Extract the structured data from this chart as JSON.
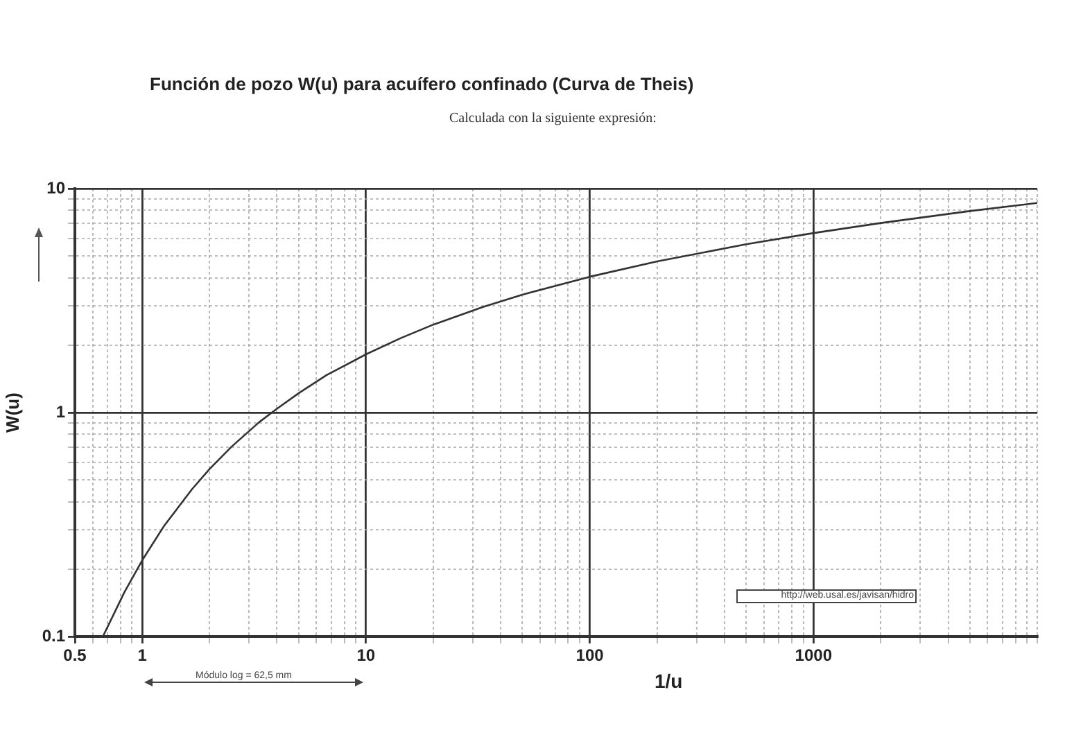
{
  "chart_data": {
    "type": "line",
    "title": "Función de pozo W(u) para acuífero confinado (Curva de Theis)",
    "subtitle": "Calculada con la siguiente expresión:",
    "xlabel": "1/u",
    "ylabel": "W(u)",
    "annotations": [
      "Módulo log = 62,5 mm",
      "http://web.usal.es/javisan/hidro"
    ],
    "log": "xy",
    "grid": true,
    "xlim": [
      0.5,
      10000
    ],
    "ylim": [
      0.1,
      10
    ],
    "xticks": [
      0.5,
      {
        "value": 0.6,
        "label": null
      },
      {
        "value": 0.7,
        "label": null
      },
      {
        "value": 0.8,
        "label": null
      },
      {
        "value": 0.9,
        "label": null
      },
      1,
      {
        "value": 2,
        "label": null
      },
      {
        "value": 3,
        "label": null
      },
      {
        "value": 4,
        "label": null
      },
      {
        "value": 5,
        "label": null
      },
      {
        "value": 6,
        "label": null
      },
      {
        "value": 7,
        "label": null
      },
      {
        "value": 8,
        "label": null
      },
      {
        "value": 9,
        "label": null
      },
      10,
      {
        "value": 20,
        "label": null
      },
      {
        "value": 30,
        "label": null
      },
      {
        "value": 40,
        "label": null
      },
      {
        "value": 50,
        "label": null
      },
      {
        "value": 60,
        "label": null
      },
      {
        "value": 70,
        "label": null
      },
      {
        "value": 80,
        "label": null
      },
      {
        "value": 90,
        "label": null
      },
      100,
      {
        "value": 200,
        "label": null
      },
      {
        "value": 300,
        "label": null
      },
      {
        "value": 400,
        "label": null
      },
      {
        "value": 500,
        "label": null
      },
      {
        "value": 600,
        "label": null
      },
      {
        "value": 700,
        "label": null
      },
      {
        "value": 800,
        "label": null
      },
      {
        "value": 900,
        "label": null
      },
      1000,
      {
        "value": 2000,
        "label": null
      },
      {
        "value": 3000,
        "label": null
      },
      {
        "value": 4000,
        "label": null
      },
      {
        "value": 5000,
        "label": null
      },
      {
        "value": 6000,
        "label": null
      },
      {
        "value": 7000,
        "label": null
      },
      {
        "value": 8000,
        "label": null
      },
      {
        "value": 9000,
        "label": null
      },
      {
        "value": 10000,
        "label": null
      }
    ],
    "yticks": [
      0.1,
      {
        "value": 0.2,
        "label": null
      },
      {
        "value": 0.3,
        "label": null
      },
      {
        "value": 0.4,
        "label": null
      },
      {
        "value": 0.5,
        "label": null
      },
      {
        "value": 0.6,
        "label": null
      },
      {
        "value": 0.7,
        "label": null
      },
      {
        "value": 0.8,
        "label": null
      },
      {
        "value": 0.9,
        "label": null
      },
      1,
      {
        "value": 2,
        "label": null
      },
      {
        "value": 3,
        "label": null
      },
      {
        "value": 4,
        "label": null
      },
      {
        "value": 5,
        "label": null
      },
      {
        "value": 6,
        "label": null
      },
      {
        "value": 7,
        "label": null
      },
      {
        "value": 8,
        "label": null
      },
      {
        "value": 9,
        "label": null
      },
      10
    ],
    "x": [
      0.667,
      0.833,
      1,
      1.25,
      1.667,
      2,
      2.5,
      3.33,
      4,
      5,
      6.67,
      10,
      14.3,
      20,
      33.3,
      50,
      100,
      200,
      500,
      1000,
      2000,
      5000,
      10000
    ],
    "series": [
      {
        "color": "#333333",
        "values": [
          0.1,
          0.158,
          0.219,
          0.311,
          0.454,
          0.56,
          0.702,
          0.906,
          1.04,
          1.22,
          1.47,
          1.82,
          2.15,
          2.47,
          2.96,
          3.36,
          4.04,
          4.73,
          5.64,
          6.33,
          7.02,
          7.94,
          8.63
        ]
      }
    ]
  }
}
